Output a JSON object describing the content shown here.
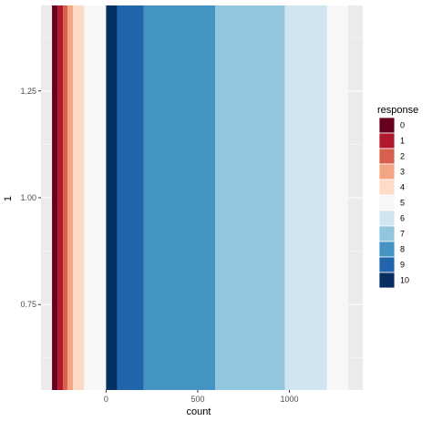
{
  "chart_data": {
    "type": "bar",
    "orientation": "horizontal-stacked-diverging",
    "xlabel": "count",
    "ylabel": "1",
    "xlim": [
      -355,
      1400
    ],
    "ylim": [
      0.55,
      1.45
    ],
    "x_ticks": [
      0,
      500,
      1000
    ],
    "y_ticks": [
      0.75,
      1.0,
      1.25
    ],
    "y_tick_labels": [
      "0.75",
      "1.00",
      "1.25"
    ],
    "grid": true,
    "legend": {
      "title": "response",
      "position": "right"
    },
    "bar_y_range": [
      0.55,
      1.45
    ],
    "series": [
      {
        "name": "0",
        "start": -295,
        "end": -265,
        "color": "#67001F"
      },
      {
        "name": "1",
        "start": -265,
        "end": -235,
        "color": "#B2182B"
      },
      {
        "name": "2",
        "start": -235,
        "end": -210,
        "color": "#D6604D"
      },
      {
        "name": "3",
        "start": -210,
        "end": -180,
        "color": "#F4A582"
      },
      {
        "name": "4",
        "start": -180,
        "end": -120,
        "color": "#FDDBC7"
      },
      {
        "name": "5",
        "start": -120,
        "end": 0,
        "color": "#F7F7F7"
      },
      {
        "name": "10",
        "start": 0,
        "end": 60,
        "color": "#053061"
      },
      {
        "name": "9",
        "start": 60,
        "end": 205,
        "color": "#2166AC"
      },
      {
        "name": "8",
        "start": 205,
        "end": 595,
        "color": "#4393C3"
      },
      {
        "name": "7",
        "start": 595,
        "end": 975,
        "color": "#92C5DE"
      },
      {
        "name": "6",
        "start": 975,
        "end": 1205,
        "color": "#D1E5F0"
      },
      {
        "name": "5",
        "start": 1205,
        "end": 1320,
        "color": "#F7F7F7"
      }
    ],
    "legend_entries": [
      {
        "label": "0",
        "color": "#67001F"
      },
      {
        "label": "1",
        "color": "#B2182B"
      },
      {
        "label": "2",
        "color": "#D6604D"
      },
      {
        "label": "3",
        "color": "#F4A582"
      },
      {
        "label": "4",
        "color": "#FDDBC7"
      },
      {
        "label": "5",
        "color": "#F7F7F7"
      },
      {
        "label": "6",
        "color": "#D1E5F0"
      },
      {
        "label": "7",
        "color": "#92C5DE"
      },
      {
        "label": "8",
        "color": "#4393C3"
      },
      {
        "label": "9",
        "color": "#2166AC"
      },
      {
        "label": "10",
        "color": "#053061"
      }
    ],
    "panel_color": "#EBEBEB",
    "grid_color": "#FFFFFF"
  }
}
